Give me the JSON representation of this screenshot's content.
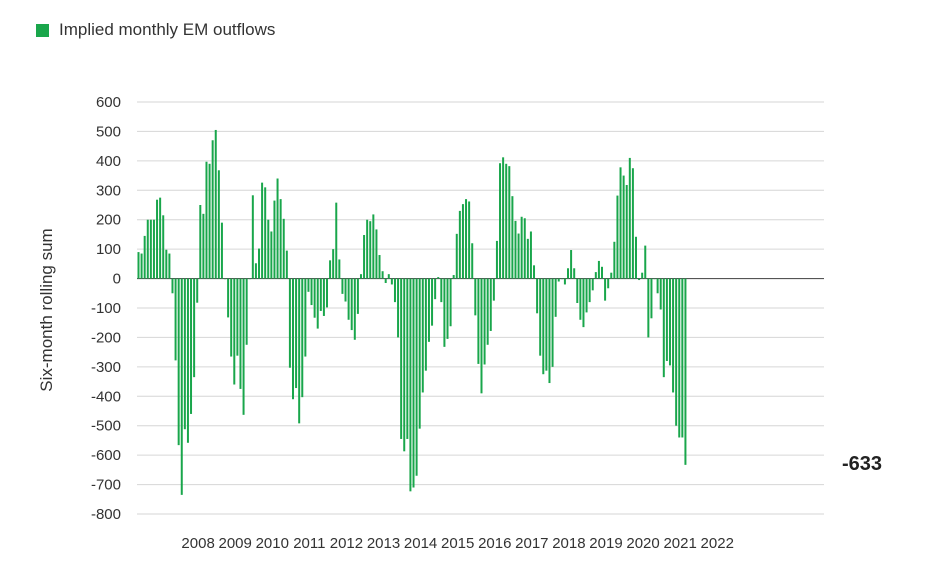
{
  "chart_data": {
    "type": "bar",
    "title": "",
    "xlabel": "",
    "ylabel": "Six-month rolling sum",
    "ylim": [
      -800,
      600
    ],
    "yticks": [
      600,
      500,
      400,
      300,
      200,
      100,
      0,
      -100,
      -200,
      -300,
      -400,
      -500,
      -600,
      -700,
      -800
    ],
    "ytick_labels": [
      "600",
      "500",
      "400",
      "300",
      "200",
      "100",
      "0",
      "-100",
      "-200",
      "-300",
      "-400",
      "-500",
      "-600",
      "-700",
      "-800"
    ],
    "x_tick_labels": [
      "2008",
      "2009",
      "2010",
      "2011",
      "2012",
      "2013",
      "2014",
      "2015",
      "2016",
      "2017",
      "2018",
      "2019",
      "2020",
      "2021",
      "2022"
    ],
    "grid": true,
    "legend": "top-left",
    "color": "#19a64b",
    "end_annotation": "-633",
    "series": [
      {
        "name": "Implied monthly EM outflows",
        "start_year": 2007,
        "values": [
          90,
          85,
          145,
          200,
          200,
          200,
          268,
          275,
          215,
          98,
          85,
          -50,
          -278,
          -566,
          -735,
          -512,
          -558,
          -460,
          -335,
          -82,
          250,
          220,
          397,
          390,
          470,
          505,
          368,
          190,
          0,
          -132,
          -265,
          -360,
          -262,
          -375,
          -463,
          -225,
          0,
          283,
          52,
          102,
          326,
          310,
          200,
          160,
          265,
          340,
          270,
          203,
          95,
          -303,
          -410,
          -372,
          -492,
          -403,
          -265,
          -45,
          -90,
          -133,
          -170,
          -110,
          -127,
          -98,
          62,
          100,
          258,
          65,
          -52,
          -78,
          -140,
          -175,
          -208,
          -120,
          15,
          148,
          200,
          195,
          218,
          167,
          80,
          25,
          -15,
          15,
          -20,
          -80,
          -200,
          -545,
          -587,
          -545,
          -723,
          -710,
          -670,
          -510,
          -387,
          -313,
          -215,
          -160,
          -70,
          5,
          -80,
          -232,
          -205,
          -162,
          12,
          152,
          230,
          253,
          270,
          262,
          120,
          -125,
          -290,
          -390,
          -292,
          -225,
          -178,
          -75,
          128,
          392,
          412,
          390,
          382,
          280,
          196,
          153,
          210,
          205,
          135,
          160,
          45,
          -118,
          -262,
          -325,
          -313,
          -355,
          -300,
          -130,
          -10,
          0,
          -20,
          35,
          97,
          35,
          -83,
          -140,
          -165,
          -115,
          -80,
          -40,
          22,
          60,
          40,
          -75,
          -33,
          20,
          125,
          282,
          378,
          350,
          318,
          410,
          375,
          142,
          -5,
          20,
          112,
          -200,
          -135,
          0,
          -50,
          -105,
          -335,
          -280,
          -295,
          -387,
          -500,
          -540,
          -540,
          -633
        ]
      }
    ]
  }
}
